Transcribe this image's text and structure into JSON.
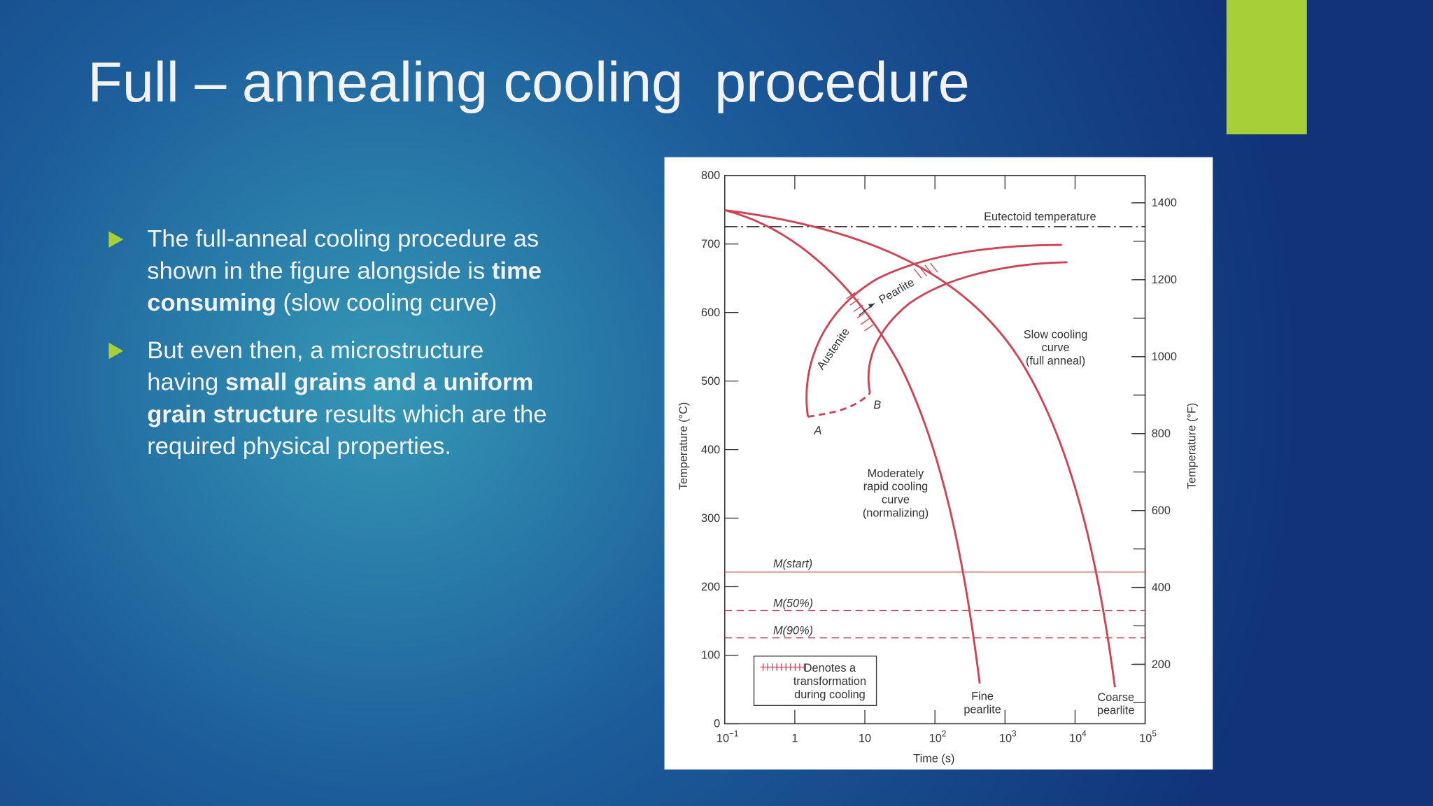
{
  "title": "Full – annealing cooling  procedure",
  "bullets": [
    [
      [
        {
          "text": "The full-anneal cooling procedure as"
        }
      ],
      [
        {
          "text": "shown in the figure alongside is "
        },
        {
          "text": "time",
          "bold": true
        }
      ],
      [
        {
          "text": "consuming",
          "bold": true
        },
        {
          "text": " (slow cooling curve)"
        }
      ]
    ],
    [
      [
        {
          "text": "But even then, a microstructure"
        }
      ],
      [
        {
          "text": "having "
        },
        {
          "text": "small grains and a uniform",
          "bold": true
        }
      ],
      [
        {
          "text": "grain structure",
          "bold": true
        },
        {
          "text": " results which are the"
        }
      ],
      [
        {
          "text": "required physical properties."
        }
      ]
    ]
  ],
  "figure": {
    "y_left_label": "Temperature (°C)",
    "y_left_ticks": [
      "0",
      "100",
      "200",
      "300",
      "400",
      "500",
      "600",
      "700",
      "800"
    ],
    "y_right_label": "Temperature (°F)",
    "y_right_ticks": [
      "200",
      "400",
      "600",
      "800",
      "1000",
      "1200",
      "1400"
    ],
    "x_label": "Time (s)",
    "x_ticks": [
      {
        "base": "10",
        "exp": "−1"
      },
      "1",
      "10",
      {
        "base": "10",
        "exp": "2"
      },
      {
        "base": "10",
        "exp": "3"
      },
      {
        "base": "10",
        "exp": "4"
      },
      {
        "base": "10",
        "exp": "5"
      }
    ],
    "annotations": {
      "eutectoid": [
        "Eutectoid temperature"
      ],
      "pearlite": [
        "Pearlite"
      ],
      "austenite": [
        "Austenite"
      ],
      "point_a": [
        "A"
      ],
      "point_b": [
        "B"
      ],
      "slow": [
        "Slow cooling",
        "curve",
        "(full anneal)"
      ],
      "moderate": [
        "Moderately",
        "rapid cooling",
        "curve",
        "(normalizing)"
      ],
      "m_start": [
        "M(start)"
      ],
      "m_50": [
        "M(50%)"
      ],
      "m_90": [
        "M(90%)"
      ],
      "legend": [
        "Denotes a",
        "transformation",
        "during cooling"
      ],
      "fine": [
        "Fine",
        "pearlite"
      ],
      "coarse": [
        "Coarse",
        "pearlite"
      ]
    }
  }
}
